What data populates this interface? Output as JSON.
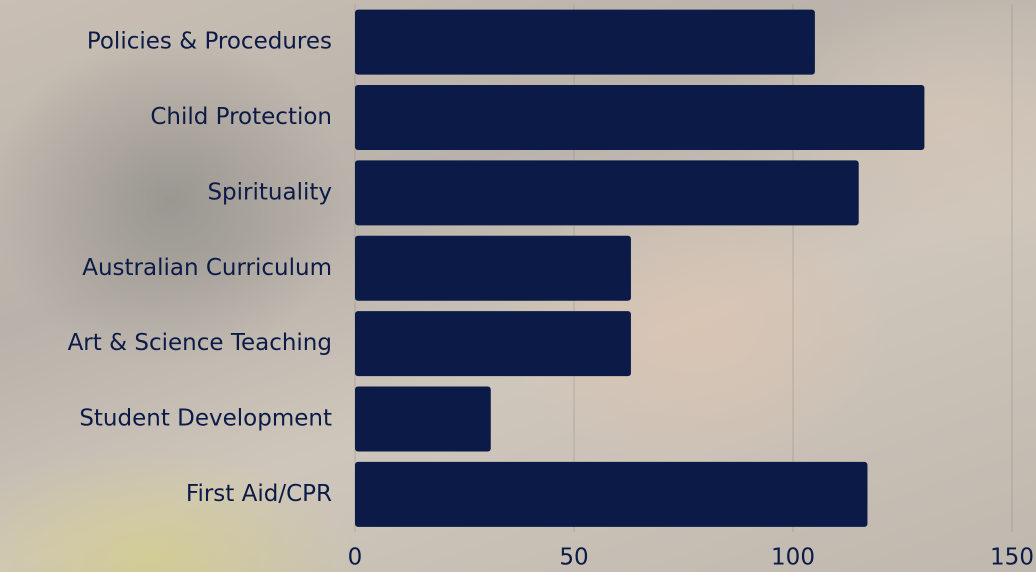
{
  "chart_data": {
    "type": "hbar",
    "categories": [
      "Policies & Procedures",
      "Child Protection",
      "Spirituality",
      "Australian Curriculum",
      "Art & Science Teaching",
      "Student Development",
      "First Aid/CPR"
    ],
    "values": [
      105,
      130,
      115,
      63,
      63,
      31,
      117
    ],
    "color": "#0b1a47",
    "xlim": [
      0,
      150
    ],
    "xticks": [
      0,
      50,
      100,
      150
    ],
    "grid": true
  }
}
